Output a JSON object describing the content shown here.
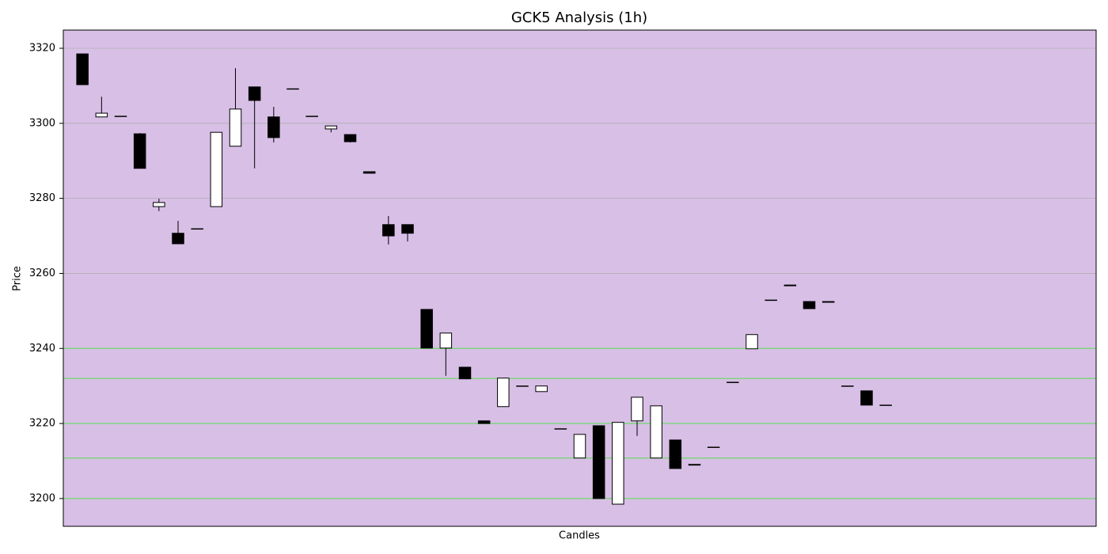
{
  "chart_data": {
    "type": "candlestick",
    "title": "GCK5 Analysis (1h)",
    "x_label": "Candles",
    "y_label": "Price",
    "x": [
      0,
      1,
      2,
      3,
      4,
      5,
      6,
      7,
      8,
      9,
      10,
      11,
      12,
      13,
      14,
      15,
      16,
      17,
      18,
      19,
      20,
      21,
      22,
      23,
      24,
      25,
      26,
      27,
      28,
      29,
      30,
      31,
      32,
      33,
      34,
      35,
      36,
      37,
      38,
      39,
      40,
      41,
      42
    ],
    "open": [
      3318.5,
      3301.7,
      3301.9,
      3297.2,
      3277.8,
      3270.7,
      3271.9,
      3277.8,
      3293.9,
      3309.7,
      3301.7,
      3309.2,
      3301.9,
      3298.5,
      3297.0,
      3287.1,
      3273.0,
      3273.0,
      3250.4,
      3240.1,
      3235.0,
      3220.7,
      3224.5,
      3230.0,
      3228.5,
      3218.6,
      3210.8,
      3219.4,
      3198.5,
      3220.7,
      3210.8,
      3215.6,
      3209.1,
      3213.7,
      3231.0,
      3239.9,
      3252.9,
      3256.9,
      3252.5,
      3252.5,
      3230.0,
      3228.7,
      3224.9
    ],
    "high": [
      3318.5,
      3307.1,
      3301.9,
      3297.4,
      3279.9,
      3274.0,
      3271.9,
      3297.6,
      3314.7,
      3309.7,
      3304.4,
      3309.2,
      3301.9,
      3299.3,
      3297.0,
      3287.1,
      3275.3,
      3273.0,
      3250.4,
      3244.1,
      3235.0,
      3220.7,
      3232.1,
      3230.0,
      3230.0,
      3218.6,
      3217.1,
      3219.4,
      3220.3,
      3227.0,
      3224.7,
      3215.6,
      3209.1,
      3213.7,
      3231.0,
      3243.7,
      3252.9,
      3256.9,
      3252.5,
      3252.5,
      3230.0,
      3228.7,
      3224.9
    ],
    "low": [
      3310.3,
      3301.7,
      3301.9,
      3288.0,
      3276.6,
      3267.9,
      3271.9,
      3277.8,
      3293.9,
      3288.0,
      3294.9,
      3309.2,
      3301.9,
      3297.6,
      3294.9,
      3286.7,
      3267.7,
      3268.5,
      3240.1,
      3232.7,
      3231.9,
      3220.0,
      3224.5,
      3230.0,
      3228.5,
      3218.6,
      3210.8,
      3200.0,
      3198.5,
      3216.7,
      3210.8,
      3208.0,
      3208.9,
      3213.7,
      3231.0,
      3239.9,
      3252.9,
      3256.7,
      3250.6,
      3252.3,
      3230.0,
      3224.9,
      3224.9
    ],
    "close": [
      3310.3,
      3302.7,
      3301.9,
      3288.0,
      3278.9,
      3267.9,
      3271.9,
      3297.6,
      3303.8,
      3306.1,
      3296.2,
      3309.2,
      3301.9,
      3299.3,
      3295.1,
      3286.7,
      3270.0,
      3270.7,
      3240.1,
      3244.1,
      3231.9,
      3220.0,
      3232.1,
      3230.0,
      3230.0,
      3218.6,
      3217.1,
      3200.0,
      3220.3,
      3227.0,
      3224.7,
      3208.0,
      3208.9,
      3213.7,
      3231.0,
      3243.7,
      3252.9,
      3256.7,
      3250.6,
      3252.3,
      3230.0,
      3224.9,
      3224.9
    ],
    "up_color": "#ffffff",
    "down_color": "#000000",
    "background": "#d8bfe6",
    "levels": [
      3240,
      3232,
      3220,
      3210.8,
      3200
    ],
    "level_color": "#7fd47f",
    "xlim": [
      -1,
      53
    ],
    "ylim": [
      3192.6,
      3324.85
    ],
    "yticks": [
      3200,
      3220,
      3240,
      3260,
      3280,
      3300,
      3320
    ],
    "grid": true
  }
}
